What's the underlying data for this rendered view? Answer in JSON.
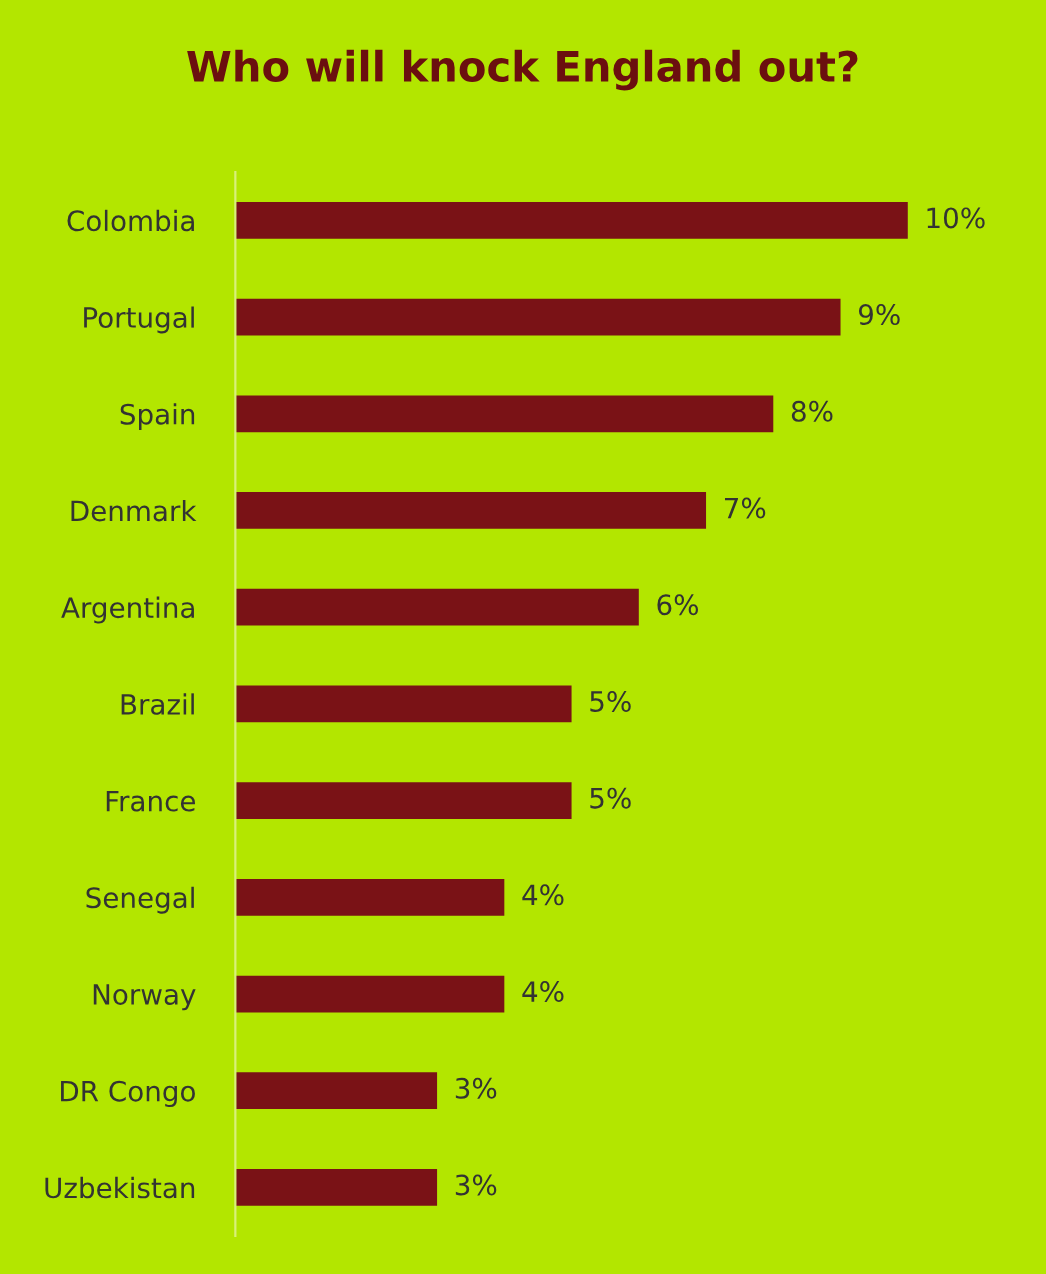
{
  "chart_data": {
    "type": "bar",
    "orientation": "horizontal",
    "title": "Who will knock England out?",
    "categories": [
      "Colombia",
      "Portugal",
      "Spain",
      "Denmark",
      "Argentina",
      "Brazil",
      "France",
      "Senegal",
      "Norway",
      "DR Congo",
      "Uzbekistan"
    ],
    "values": [
      10,
      9,
      8,
      7,
      6,
      5,
      5,
      4,
      4,
      3,
      3
    ],
    "value_labels": [
      "10%",
      "9%",
      "8%",
      "7%",
      "6%",
      "5%",
      "5%",
      "4%",
      "4%",
      "3%",
      "3%"
    ],
    "color": "#7a1216",
    "tick_labels": "y",
    "grid": false,
    "legend": false
  }
}
